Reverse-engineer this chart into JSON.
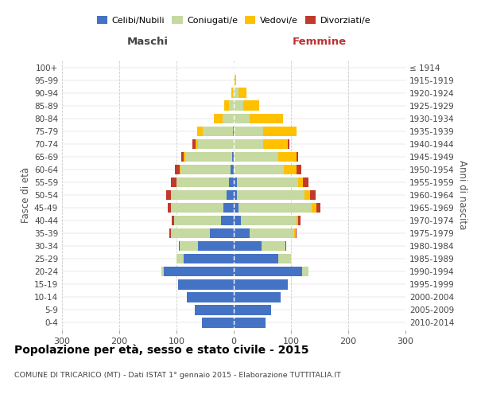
{
  "age_groups": [
    "0-4",
    "5-9",
    "10-14",
    "15-19",
    "20-24",
    "25-29",
    "30-34",
    "35-39",
    "40-44",
    "45-49",
    "50-54",
    "55-59",
    "60-64",
    "65-69",
    "70-74",
    "75-79",
    "80-84",
    "85-89",
    "90-94",
    "95-99",
    "100+"
  ],
  "birth_years": [
    "2010-2014",
    "2005-2009",
    "2000-2004",
    "1995-1999",
    "1990-1994",
    "1985-1989",
    "1980-1984",
    "1975-1979",
    "1970-1974",
    "1965-1969",
    "1960-1964",
    "1955-1959",
    "1950-1954",
    "1945-1949",
    "1940-1944",
    "1935-1939",
    "1930-1934",
    "1925-1929",
    "1920-1924",
    "1915-1919",
    "≤ 1914"
  ],
  "males_celibe": [
    55,
    68,
    82,
    97,
    122,
    88,
    62,
    42,
    22,
    18,
    12,
    8,
    5,
    3,
    0,
    2,
    0,
    0,
    0,
    0,
    0
  ],
  "males_coniugato": [
    0,
    0,
    0,
    0,
    4,
    12,
    32,
    68,
    82,
    92,
    98,
    92,
    88,
    82,
    62,
    52,
    20,
    8,
    2,
    0,
    0
  ],
  "males_vedovo": [
    0,
    0,
    0,
    0,
    0,
    0,
    0,
    0,
    0,
    0,
    0,
    0,
    2,
    2,
    5,
    10,
    15,
    8,
    2,
    0,
    0
  ],
  "males_divorziato": [
    0,
    0,
    0,
    0,
    0,
    0,
    2,
    3,
    5,
    5,
    8,
    10,
    8,
    5,
    5,
    0,
    0,
    0,
    0,
    0,
    0
  ],
  "females_nubile": [
    55,
    65,
    82,
    95,
    120,
    78,
    48,
    28,
    12,
    8,
    5,
    5,
    0,
    0,
    0,
    0,
    0,
    0,
    0,
    0,
    0
  ],
  "females_coniugata": [
    0,
    0,
    0,
    0,
    10,
    22,
    42,
    78,
    98,
    128,
    118,
    108,
    88,
    78,
    52,
    52,
    28,
    16,
    8,
    2,
    0
  ],
  "females_vedova": [
    0,
    0,
    0,
    0,
    0,
    0,
    0,
    2,
    2,
    8,
    10,
    8,
    22,
    32,
    42,
    58,
    58,
    28,
    14,
    2,
    0
  ],
  "females_divorziata": [
    0,
    0,
    0,
    0,
    0,
    0,
    2,
    2,
    5,
    8,
    10,
    10,
    8,
    3,
    3,
    0,
    0,
    0,
    0,
    0,
    0
  ],
  "colors": {
    "celibe_nubile": "#4472c4",
    "coniugato": "#c5d9a0",
    "vedovo": "#ffc000",
    "divorziato": "#c0392b"
  },
  "title": "Popolazione per età, sesso e stato civile - 2015",
  "subtitle": "COMUNE DI TRICARICO (MT) - Dati ISTAT 1° gennaio 2015 - Elaborazione TUTTITALIA.IT",
  "label_maschi": "Maschi",
  "label_femmine": "Femmine",
  "ylabel_left": "Fasce di età",
  "ylabel_right": "Anni di nascita",
  "legend_labels": [
    "Celibi/Nubili",
    "Coniugati/e",
    "Vedovi/e",
    "Divorziati/e"
  ],
  "xlim": 300,
  "background_color": "#ffffff",
  "grid_color": "#cccccc"
}
